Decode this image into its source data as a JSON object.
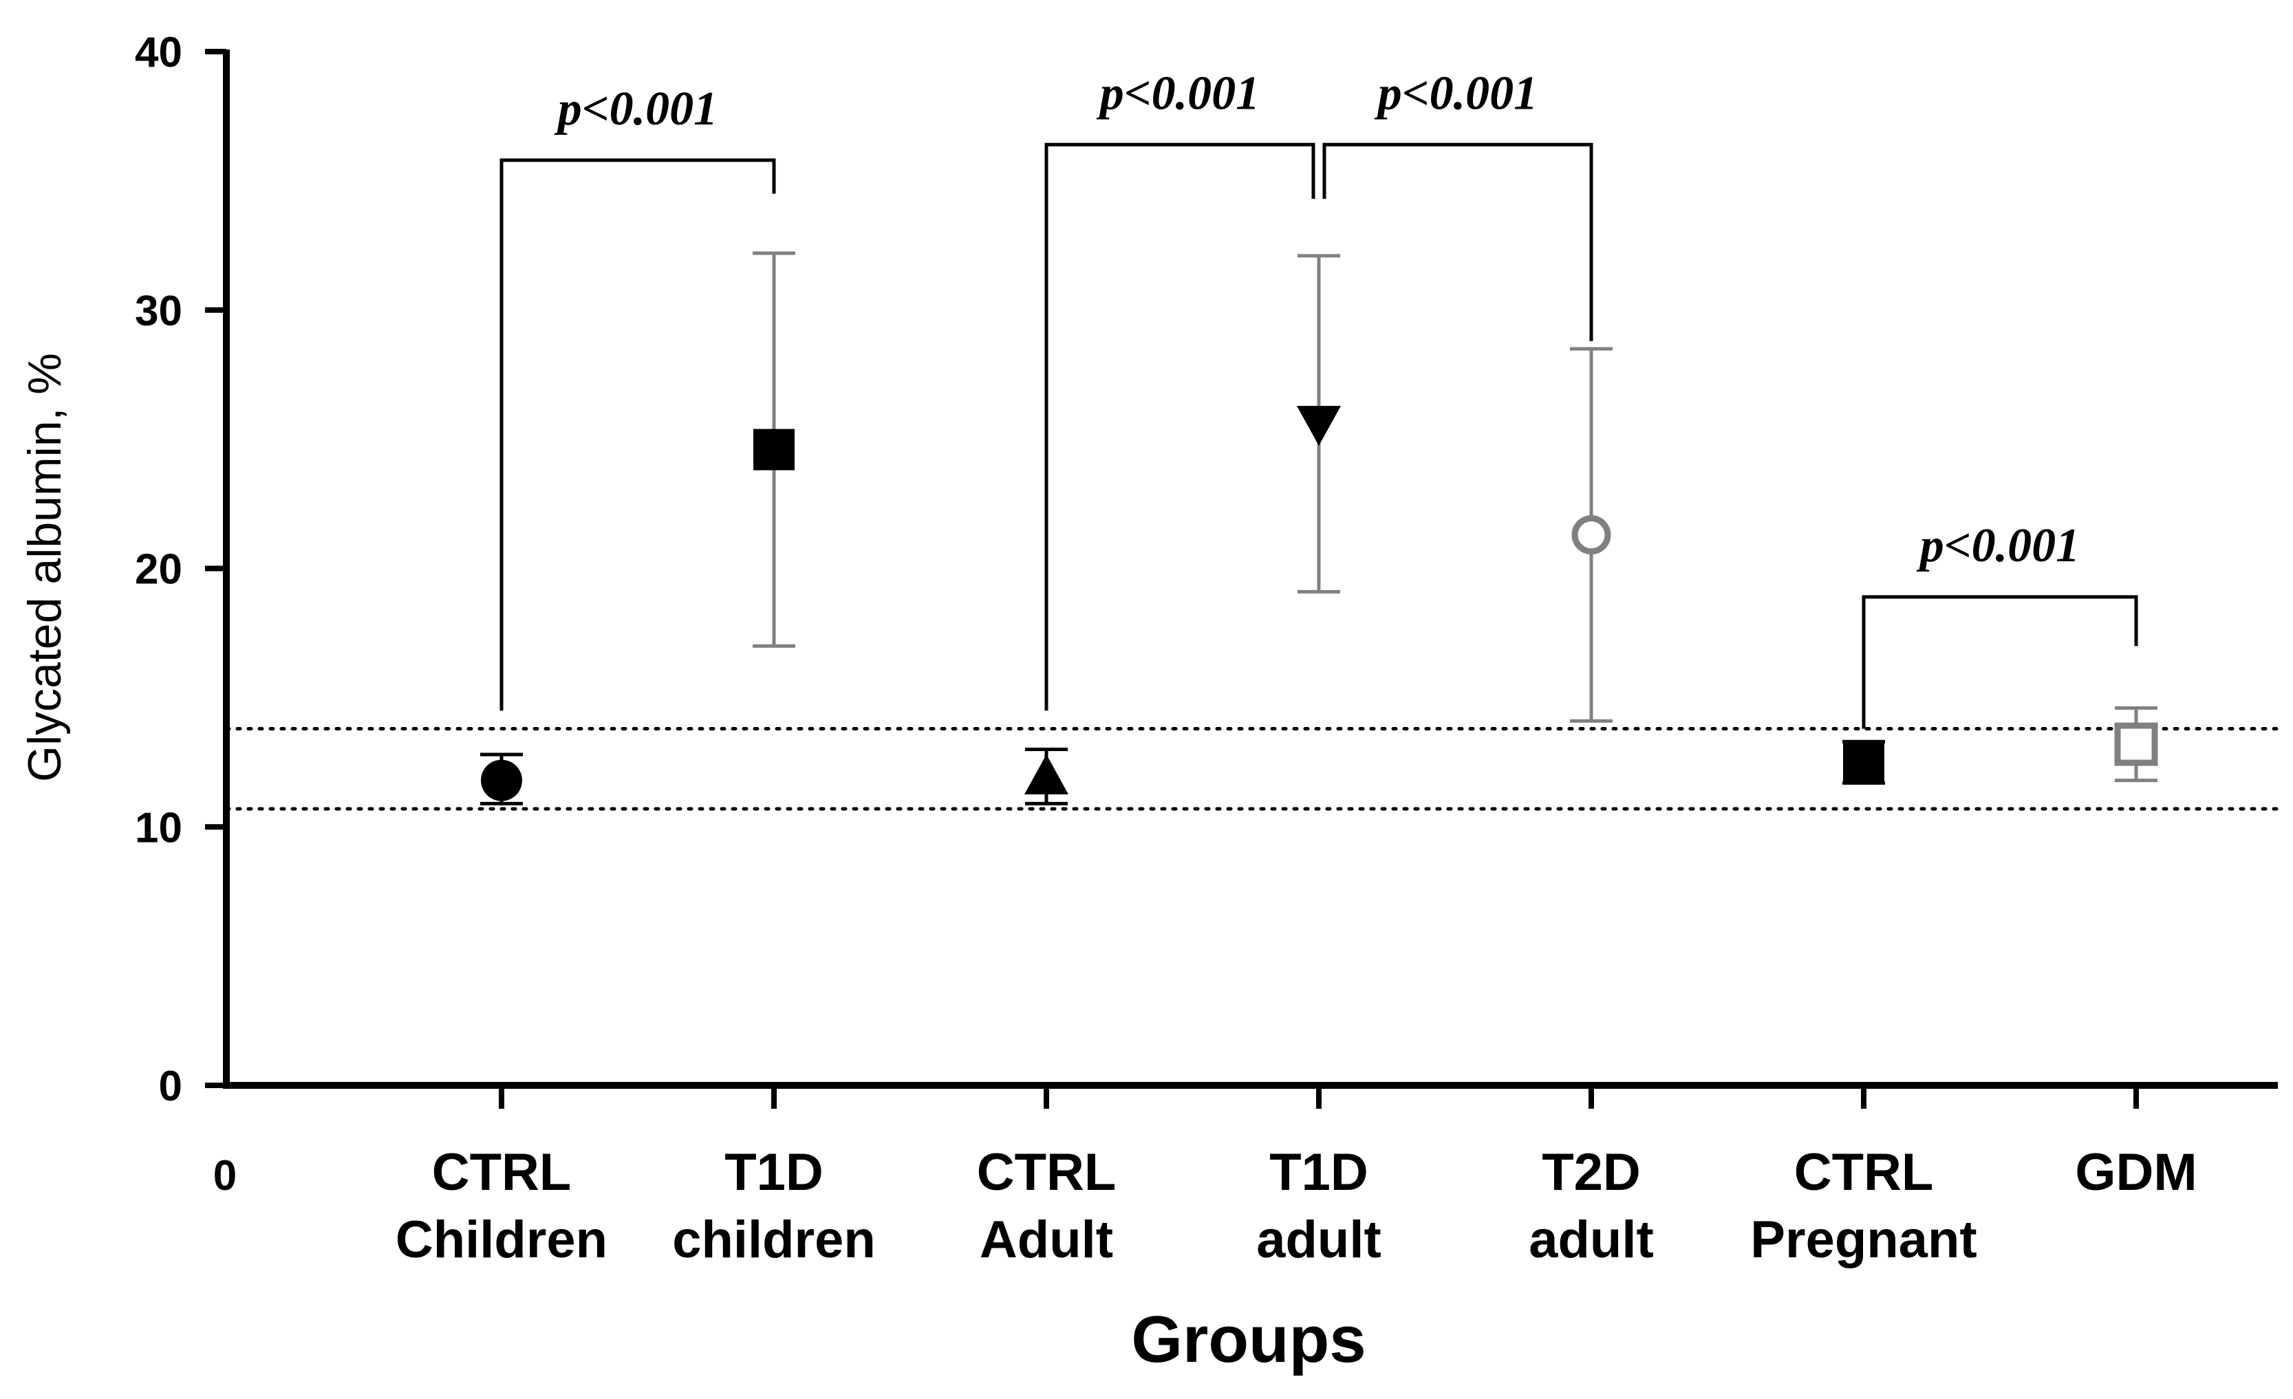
{
  "chart_data": {
    "type": "scatter",
    "title": "",
    "xlabel": "Groups",
    "ylabel": "Glycated albumin, %",
    "ylim": [
      0,
      40
    ],
    "yticks": [
      "0",
      "10",
      "20",
      "30",
      "40"
    ],
    "x_origin_label": "0",
    "grid": false,
    "categories": [
      {
        "line1": "CTRL",
        "line2": "Children"
      },
      {
        "line1": "T1D",
        "line2": "children"
      },
      {
        "line1": "CTRL",
        "line2": "Adult"
      },
      {
        "line1": "T1D",
        "line2": "adult"
      },
      {
        "line1": "T2D",
        "line2": "adult"
      },
      {
        "line1": "CTRL",
        "line2": "Pregnant"
      },
      {
        "line1": "GDM",
        "line2": ""
      }
    ],
    "series": [
      {
        "name": "CTRL Children",
        "mean": 11.8,
        "err_low": 10.9,
        "err_high": 12.8,
        "marker": "circle",
        "color": "#000000",
        "error_color": "#000000",
        "filled": true
      },
      {
        "name": "T1D children",
        "mean": 24.6,
        "err_low": 17.0,
        "err_high": 32.2,
        "marker": "square",
        "color": "#000000",
        "error_color": "#808080",
        "filled": true
      },
      {
        "name": "CTRL Adult",
        "mean": 11.9,
        "err_low": 10.9,
        "err_high": 13.0,
        "marker": "triangle-up",
        "color": "#000000",
        "error_color": "#000000",
        "filled": true
      },
      {
        "name": "T1D adult",
        "mean": 25.6,
        "err_low": 19.1,
        "err_high": 32.1,
        "marker": "triangle-down",
        "color": "#000000",
        "error_color": "#808080",
        "filled": true
      },
      {
        "name": "T2D adult",
        "mean": 21.3,
        "err_low": 14.1,
        "err_high": 28.5,
        "marker": "circle",
        "color": "#808080",
        "error_color": "#808080",
        "filled": false
      },
      {
        "name": "CTRL Pregnant",
        "mean": 12.5,
        "err_low": 11.7,
        "err_high": 13.3,
        "marker": "square",
        "color": "#000000",
        "error_color": "#000000",
        "filled": true
      },
      {
        "name": "GDM",
        "mean": 13.2,
        "err_low": 11.8,
        "err_high": 14.6,
        "marker": "square",
        "color": "#808080",
        "error_color": "#808080",
        "filled": false
      }
    ],
    "reference_lines": [
      {
        "y": 10.7,
        "style": "dotted"
      },
      {
        "y": 13.8,
        "style": "dotted"
      }
    ],
    "significance": [
      {
        "from": 0,
        "to": 1,
        "label": "p<0.001",
        "bracket_y": 35.8,
        "left_end": 14.5,
        "right_end": 34.5
      },
      {
        "from": 2,
        "to": 3,
        "label": "p<0.001",
        "bracket_y": 36.4,
        "left_end": 14.5,
        "right_end": 34.3
      },
      {
        "from": 3,
        "to": 4,
        "label": "p<0.001",
        "bracket_y": 36.4,
        "left_end": 34.3,
        "right_end": 28.8
      },
      {
        "from": 5,
        "to": 6,
        "label": "p<0.001",
        "bracket_y": 18.9,
        "left_end": 13.8,
        "right_end": 17.0
      }
    ]
  }
}
